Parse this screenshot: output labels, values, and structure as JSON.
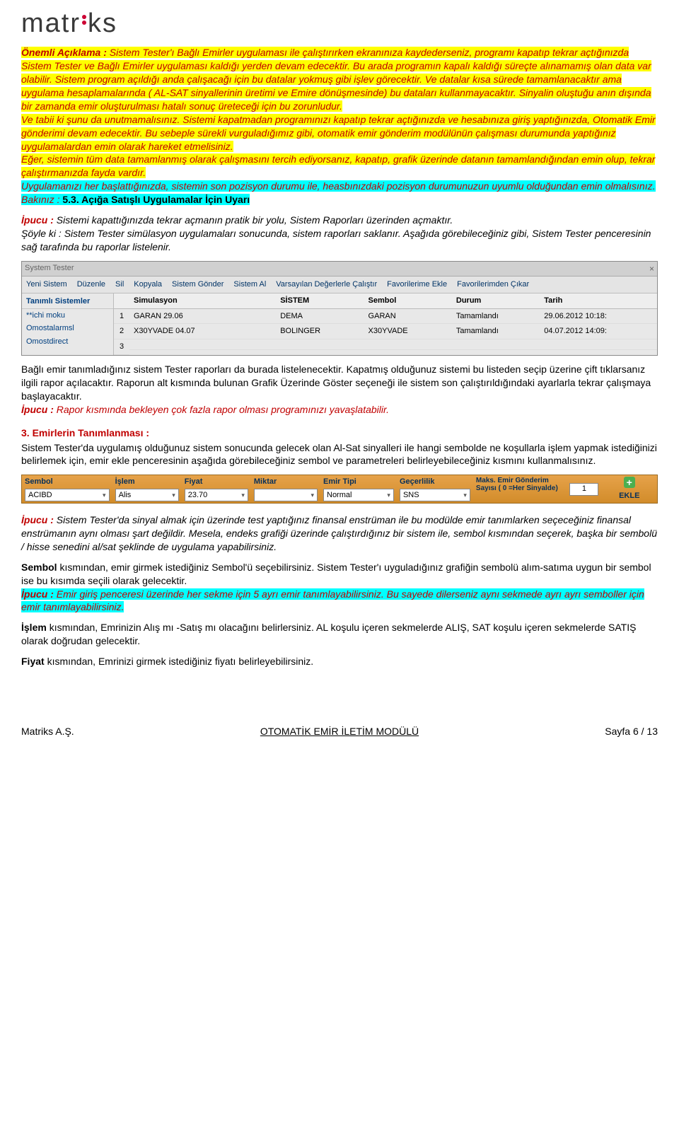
{
  "logo": {
    "prefix": "matr",
    "suffix": "ks"
  },
  "p1": {
    "a": "Önemli Açıklama : ",
    "b": "Sistem Tester'ı Bağlı Emirler uygulaması ile çalıştırırken ekranınıza kaydederseniz, programı kapatıp tekrar açtığınızda Sistem Tester ve Bağlı Emirler uygulaması kaldığı yerden devam edecektir. Bu arada programın kapalı kaldığı süreçte alınamamış olan data var olabilir. Sistem program açıldığı anda çalışacağı için bu datalar yokmuş gibi işlev görecektir. Ve datalar kısa sürede tamamlanacaktır ama uygulama hesaplamalarında ( AL-SAT sinyallerinin üretimi ve Emire dönüşmesinde) bu dataları kullanmayacaktır. Sinyalin oluştuğu anın dışında bir zamanda emir oluşturulması hatalı sonuç üreteceği için bu zorunludur.",
    "c": "Ve tabii ki şunu da unutmamalısınız. Sistemi kapatmadan programınızı kapatıp tekrar açtığınızda ve hesabınıza giriş yaptığınızda, Otomatik Emir gönderimi devam edecektir. Bu sebeple sürekli vurguladığımız gibi, otomatik emir gönderim modülünün çalışması durumunda yaptığınız uygulamalardan emin olarak hareket etmelisiniz.",
    "d": "Eğer, sistemin tüm data tamamlanmış olarak çalışmasını tercih ediyorsanız, kapatıp, grafik üzerinde datanın tamamlandığından emin olup, tekrar çalıştırmanızda fayda vardır.",
    "e": "Uygulamanızı her başlattığınızda, sistemin son pozisyon durumu ile, heasbınızdaki pozisyon durumunuzun uyumlu olduğundan emin olmalısınız. Bakınız : ",
    "f": " 5.3. Açığa Satışlı Uygulamalar İçin Uyarı"
  },
  "p2": {
    "a": "İpucu : ",
    "b": "Sistemi kapattığınızda tekrar açmanın pratik bir yolu, Sistem Raporları üzerinden açmaktır.",
    "c": "Şöyle ki : Sistem Tester simülasyon uygulamaları sonucunda, sistem raporları saklanır. Aşağıda görebileceğiniz gibi, Sistem Tester penceresinin sağ tarafında bu raporlar listelenir."
  },
  "st": {
    "title": "System Tester",
    "toolbar": [
      "Yeni Sistem",
      "Düzenle",
      "Sil",
      "Kopyala",
      "Sistem Gönder",
      "Sistem Al",
      "Varsayılan Değerlerle Çalıştır",
      "Favorilerime Ekle",
      "Favorilerimden Çıkar"
    ],
    "side_header": "Tanımlı Sistemler",
    "side_items": [
      "**ichi moku",
      "Omostalarmsl",
      "Omostdirect",
      ""
    ],
    "columns": [
      "",
      "Simulasyon",
      "SİSTEM",
      "Sembol",
      "Durum",
      "Tarih"
    ],
    "rows": [
      [
        "1",
        "GARAN 29.06",
        "DEMA",
        "GARAN",
        "Tamamlandı",
        "29.06.2012 10:18:"
      ],
      [
        "2",
        "X30YVADE 04.07",
        "BOLINGER",
        "X30YVADE",
        "Tamamlandı",
        "04.07.2012 14:09:"
      ],
      [
        "3",
        "",
        "",
        "",
        "",
        ""
      ]
    ]
  },
  "p3": {
    "a": "Bağlı emir tanımladığınız sistem Tester raporları da burada listelenecektir. Kapatmış olduğunuz sistemi bu listeden seçip üzerine çift tıklarsanız ilgili rapor açılacaktır. Raporun alt kısmında bulunan Grafik Üzerinde Göster seçeneği ile sistem son çalıştırıldığındaki ayarlarla tekrar çalışmaya başlayacaktır.",
    "b": "İpucu : ",
    "c": "Rapor kısmında bekleyen çok fazla rapor olması programınızı yavaşlatabilir."
  },
  "sec3": {
    "title": "3. Emirlerin Tanımlanması :",
    "body": "Sistem Tester'da uygulamış olduğunuz sistem sonucunda gelecek olan Al-Sat sinyalleri ile hangi sembolde ne koşullarla işlem yapmak istediğinizi belirlemek için, emir ekle penceresinin aşağıda görebileceğiniz sembol ve parametreleri belirleyebileceğiniz kısmını kullanmalısınız."
  },
  "ob": {
    "headers": [
      "Sembol",
      "İşlem",
      "Fiyat",
      "Miktar",
      "Emir Tipi",
      "Geçerlilik"
    ],
    "values": [
      "ACIBD",
      "Alis",
      "23.70",
      "",
      "Normal",
      "SNS"
    ],
    "maks_label": "Maks. Emir Gönderim Sayısı ( 0 =Her Sinyalde)",
    "maks_value": "1",
    "ekle": "EKLE"
  },
  "p4": {
    "a": "İpucu : ",
    "b": "Sistem Tester'da sinyal almak için üzerinde test yaptığınız finansal enstrüman ile bu modülde emir tanımlarken seçeceğiniz finansal enstrümanın aynı olması şart değildir. Mesela, endeks grafiği üzerinde çalıştırdığınız bir sistem ile, sembol kısmından seçerek, başka bir sembolü / hisse senedini al/sat şeklinde de uygulama yapabilirsiniz."
  },
  "p5": {
    "a": "Sembol ",
    "b": "kısmından, emir girmek istediğiniz Sembol'ü seçebilirsiniz. Sistem Tester'ı uyguladığınız grafiğin sembolü alım-satıma uygun bir sembol ise bu kısımda seçili olarak gelecektir.",
    "c": "İpucu : ",
    "d": "Emir giriş penceresi üzerinde her sekme için 5 ayrı emir tanımlayabilirsiniz. Bu sayede dilerseniz aynı sekmede ayrı ayrı semboller için emir tanımlayabilirsiniz."
  },
  "p6": {
    "a": "İşlem ",
    "b": "kısmından, Emrinizin Alış mı -Satış mı olacağını belirlersiniz. AL koşulu içeren sekmelerde ALIŞ, SAT koşulu içeren sekmelerde SATIŞ olarak doğrudan gelecektir."
  },
  "p7": {
    "a": "Fiyat ",
    "b": "kısmından, Emrinizi girmek istediğiniz fiyatı belirleyebilirsiniz."
  },
  "footer": {
    "left": "Matriks A.Ş.",
    "center": "OTOMATİK EMİR İLETİM MODÜLÜ",
    "right": "Sayfa 6 / 13"
  }
}
